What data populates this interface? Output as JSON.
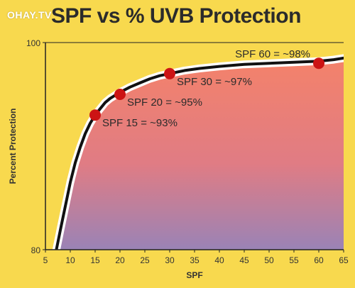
{
  "watermark": "OHAY.TV",
  "chart_data": {
    "type": "area",
    "title": "SPF vs % UVB Protection",
    "xlabel": "SPF",
    "ylabel": "Percent Protection",
    "xlim": [
      5,
      65
    ],
    "ylim": [
      80,
      100
    ],
    "x_ticks": [
      5,
      10,
      15,
      20,
      25,
      30,
      35,
      40,
      45,
      50,
      55,
      60,
      65
    ],
    "y_ticks": [
      80,
      100
    ],
    "curve": {
      "x": [
        7.2,
        8,
        9,
        10,
        11,
        12,
        13,
        14,
        15,
        16,
        17,
        18,
        20,
        22,
        24,
        26,
        28,
        30,
        33,
        36,
        40,
        45,
        50,
        55,
        60,
        63,
        65
      ],
      "y": [
        80,
        81.9,
        84.2,
        86.5,
        88.4,
        89.9,
        91.2,
        92.2,
        93,
        93.6,
        94.2,
        94.6,
        95.2,
        95.7,
        96.1,
        96.5,
        96.8,
        97,
        97.3,
        97.5,
        97.7,
        97.9,
        98,
        98.1,
        98.2,
        98.35,
        98.5
      ]
    },
    "highlighted_points": [
      {
        "spf": 15,
        "protection": 93,
        "label": "SPF 15 = ~93%"
      },
      {
        "spf": 20,
        "protection": 95,
        "label": "SPF 20 = ~95%"
      },
      {
        "spf": 30,
        "protection": 97,
        "label": "SPF 30 = ~97%"
      },
      {
        "spf": 60,
        "protection": 98,
        "label": "SPF 60 = ~98%"
      }
    ],
    "colors": {
      "background": "#f8d94e",
      "fill_top": "#f4826a",
      "fill_bottom": "#9a83b6",
      "curve": "#111111",
      "curve_halo": "#ffffff",
      "points": "#cc1414"
    }
  }
}
